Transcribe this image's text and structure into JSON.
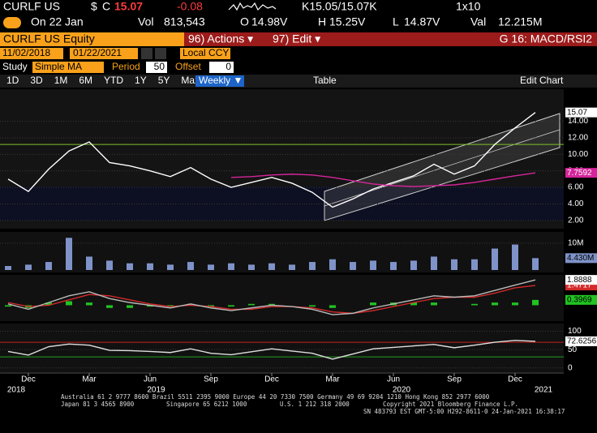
{
  "header": {
    "ticker": "CURLF US",
    "currency": "$",
    "flag": "C",
    "last": "15.07",
    "change": "-0.08",
    "quote": "K15.05/15.07K",
    "size": "1x10",
    "date": "On 22 Jan",
    "vol_label": "Vol",
    "vol": "813,543",
    "open_label": "O",
    "open": "14.98V",
    "high_label": "H",
    "high": "15.25V",
    "low_label": "L",
    "low": "14.87V",
    "val_label": "Val",
    "val": "12.215M"
  },
  "toolbar": {
    "security": "CURLF US Equity",
    "actions": "96) Actions ▾",
    "edit": "97) Edit ▾",
    "page": "G 16: MACD/RSI2",
    "start_date": "11/02/2018",
    "end_date": "01/22/2021",
    "currency_mode": "Local CCY",
    "study_label": "Study",
    "study": "Simple MA",
    "period_label": "Period",
    "period": "50",
    "offset_label": "Offset",
    "offset": "0",
    "ranges": [
      "1D",
      "3D",
      "1M",
      "6M",
      "YTD",
      "1Y",
      "5Y",
      "Max"
    ],
    "frequency": "Weekly ▼",
    "table": "Table",
    "edit_chart": "Edit Chart"
  },
  "x_axis": {
    "categories": [
      null,
      "Dec",
      null,
      null,
      "Mar",
      null,
      null,
      "Jun",
      null,
      null,
      "Sep",
      null,
      null,
      "Dec",
      null,
      null,
      "Mar",
      null,
      null,
      "Jun",
      null,
      null,
      "Sep",
      null,
      null,
      "Dec",
      null
    ],
    "years": [
      "2018",
      "2019",
      "2020",
      "2021"
    ]
  },
  "chart_data": [
    {
      "type": "line",
      "ylim": [
        1,
        17
      ],
      "yticks": [
        {
          "value": 2,
          "label": "2.00"
        },
        {
          "value": 4,
          "label": "4.00"
        },
        {
          "value": 6,
          "label": "6.00"
        },
        {
          "value": 8,
          "label": "8.00"
        },
        {
          "value": 10,
          "label": "10.00"
        },
        {
          "value": 12,
          "label": "12.00"
        },
        {
          "value": 14,
          "label": "14.00"
        }
      ],
      "ref_lines": [
        {
          "value": 11.2,
          "color": "#7fbf2a"
        }
      ],
      "series": [
        {
          "type": "line",
          "color": "#ffffff",
          "values": [
            7.0,
            5.5,
            8.2,
            10.4,
            11.5,
            9.0,
            8.6,
            8.0,
            7.3,
            8.4,
            7.0,
            6.0,
            6.6,
            7.2,
            6.5,
            5.4,
            3.6,
            4.6,
            5.8,
            6.6,
            7.4,
            8.8,
            7.6,
            8.6,
            11.2,
            13.2,
            15.07
          ],
          "last_label": true,
          "label_fill": "#fff",
          "label_text": "#000"
        },
        {
          "type": "line",
          "color": "#d6259b",
          "values": [
            null,
            null,
            null,
            null,
            null,
            null,
            null,
            null,
            null,
            null,
            null,
            7.2,
            7.3,
            7.5,
            7.6,
            7.5,
            7.2,
            6.8,
            6.4,
            6.2,
            6.1,
            6.2,
            6.3,
            6.6,
            7.0,
            7.4,
            7.7592
          ],
          "last_label": true,
          "label_fill": "#d6259b",
          "label_text": "#fff"
        }
      ]
    },
    {
      "type": "bar",
      "ylim": [
        0,
        13
      ],
      "yticks": [
        {
          "value": 10,
          "label": "10M"
        }
      ],
      "series": [
        {
          "type": "bar",
          "color": "#7f93c9",
          "values": [
            1.5,
            2.0,
            3.0,
            12.0,
            5.0,
            3.5,
            2.5,
            2.5,
            2.0,
            3.0,
            2.0,
            2.5,
            2.0,
            2.5,
            2.0,
            3.0,
            4.0,
            3.0,
            3.5,
            3.0,
            3.5,
            5.0,
            4.0,
            4.0,
            8.0,
            9.5,
            4.43
          ],
          "value_labels": [
            null,
            null,
            null,
            null,
            null,
            null,
            null,
            null,
            null,
            null,
            null,
            null,
            null,
            null,
            null,
            null,
            null,
            null,
            null,
            null,
            null,
            null,
            null,
            null,
            null,
            null,
            "4.430M"
          ],
          "last_label": true,
          "label_fill": "#7f93c9",
          "label_text": "#000"
        }
      ]
    },
    {
      "type": "combo",
      "ylim": [
        -1,
        2.2
      ],
      "yticks": [],
      "series": [
        {
          "type": "bar",
          "color": "#22c322",
          "values": [
            -0.1,
            -0.2,
            0.2,
            0.3,
            0.2,
            -0.2,
            -0.2,
            -0.1,
            -0.1,
            0.1,
            -0.1,
            -0.1,
            0.1,
            0.1,
            0.0,
            -0.1,
            -0.2,
            0.0,
            0.2,
            0.2,
            0.2,
            0.2,
            0.0,
            0.1,
            0.2,
            0.2,
            0.3969
          ],
          "last_label": true,
          "label_fill": "#22c322",
          "label_text": "#000"
        },
        {
          "type": "line",
          "color": "#d42a2a",
          "values": [
            0.2,
            -0.1,
            0.0,
            0.4,
            0.8,
            0.7,
            0.4,
            0.1,
            -0.1,
            0.0,
            -0.1,
            -0.3,
            -0.3,
            -0.1,
            -0.1,
            -0.2,
            -0.5,
            -0.6,
            -0.4,
            -0.1,
            0.2,
            0.5,
            0.6,
            0.6,
            0.9,
            1.3,
            1.4717
          ],
          "last_label": true,
          "label_fill": "#d42a2a",
          "label_text": "#fff"
        },
        {
          "type": "line",
          "color": "#bbbbbb",
          "values": [
            0.1,
            -0.3,
            0.2,
            0.7,
            1.0,
            0.5,
            0.2,
            0.0,
            -0.2,
            0.1,
            -0.2,
            -0.4,
            -0.2,
            0.0,
            -0.1,
            -0.3,
            -0.7,
            -0.6,
            -0.2,
            0.1,
            0.4,
            0.7,
            0.6,
            0.7,
            1.1,
            1.5,
            1.8888
          ],
          "last_label": true,
          "label_fill": "#fff",
          "label_text": "#000"
        }
      ]
    },
    {
      "type": "line",
      "ylim": [
        -5,
        110
      ],
      "yticks": [
        0,
        50,
        100
      ],
      "ref_lines": [
        {
          "value": 70,
          "color": "#c41e1e"
        },
        {
          "value": 30,
          "color": "#22a022"
        }
      ],
      "series": [
        {
          "type": "line",
          "color": "#e0e0e0",
          "values": [
            45,
            35,
            58,
            65,
            62,
            48,
            47,
            45,
            42,
            52,
            40,
            36,
            44,
            52,
            46,
            40,
            24,
            38,
            52,
            56,
            60,
            64,
            55,
            62,
            70,
            75,
            72.6256
          ],
          "last_label": true,
          "label_fill": "#fff",
          "label_text": "#000"
        }
      ]
    }
  ],
  "footer": {
    "line1": "Australia 61 2 9777 8600 Brazil 5511 2395 9000 Europe 44 20 7330 7500 Germany 49 69 9204 1210 Hong Kong 852 2977 6000",
    "line2a": "Japan 81 3 4565 8900",
    "line2b": "Singapore 65 6212 1000",
    "line2c": "U.S. 1 212 318 2000",
    "line2d": "Copyright 2021 Bloomberg Finance L.P.",
    "line3": "SN 483793 EST  GMT-5:00 H292-8611-0 24-Jan-2021 16:38:17"
  }
}
